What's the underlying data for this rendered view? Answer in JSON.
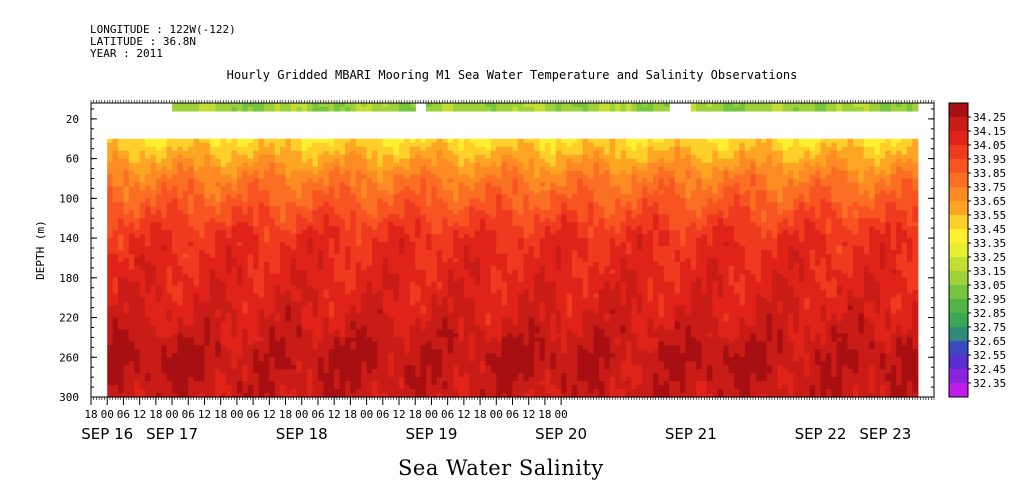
{
  "meta": {
    "longitude": "LONGITUDE : 122W(-122)",
    "latitude": "LATITUDE : 36.8N",
    "year": "YEAR : 2011"
  },
  "chart_data": {
    "type": "heatmap",
    "title": "Hourly Gridded MBARI Mooring M1 Sea Water Temperature and Salinity Observations",
    "bottom_title": "Sea Water Salinity",
    "ylabel": "DEPTH (m)",
    "ylim": [
      300,
      4
    ],
    "y_ticks": [
      20,
      60,
      100,
      140,
      180,
      220,
      260,
      300
    ],
    "x_hour_ticks": [
      "18",
      "00",
      "06",
      "12",
      "18",
      "00",
      "06",
      "12",
      "18",
      "00",
      "06",
      "12",
      "18",
      "00",
      "06",
      "12",
      "18",
      "00",
      "06",
      "12",
      "18",
      "00",
      "06",
      "12",
      "18",
      "00",
      "06",
      "12",
      "18",
      "00"
    ],
    "x_date_labels": [
      "SEP 16",
      "SEP 17",
      "SEP 18",
      "SEP 19",
      "SEP 20",
      "SEP 21",
      "SEP 22",
      "SEP 23"
    ],
    "x_date_label_hours": [
      0,
      24,
      72,
      120,
      168,
      216,
      264,
      288
    ],
    "colorbar": {
      "labels": [
        "34.25",
        "34.15",
        "34.05",
        "33.95",
        "33.85",
        "33.75",
        "33.65",
        "33.55",
        "33.45",
        "33.35",
        "33.25",
        "33.15",
        "33.05",
        "32.95",
        "32.85",
        "32.75",
        "32.65",
        "32.55",
        "32.45",
        "32.35"
      ],
      "colors": [
        "#a70f12",
        "#c91c16",
        "#e02318",
        "#f03a1f",
        "#f75422",
        "#fb6f24",
        "#fd8a22",
        "#fea524",
        "#ffcf2a",
        "#fff02e",
        "#e6ef31",
        "#c3df34",
        "#9fd23a",
        "#76c53e",
        "#52b545",
        "#3aa754",
        "#2f8a79",
        "#3b4bbf",
        "#5a2fd0",
        "#8b22e0",
        "#c21ce8"
      ]
    },
    "depth_profile": [
      {
        "depth": 10,
        "value": 33.1
      },
      {
        "depth": 40,
        "value": 33.45
      },
      {
        "depth": 60,
        "value": 33.6
      },
      {
        "depth": 80,
        "value": 33.75
      },
      {
        "depth": 100,
        "value": 33.85
      },
      {
        "depth": 120,
        "value": 33.95
      },
      {
        "depth": 140,
        "value": 34.05
      },
      {
        "depth": 180,
        "value": 34.1
      },
      {
        "depth": 220,
        "value": 34.15
      },
      {
        "depth": 260,
        "value": 34.25
      },
      {
        "depth": 300,
        "value": 34.2
      }
    ],
    "surface_gaps_hours": [
      [
        0,
        24
      ],
      [
        114,
        119
      ],
      [
        208,
        216
      ]
    ],
    "no_data_depth_range": [
      10,
      40
    ]
  }
}
